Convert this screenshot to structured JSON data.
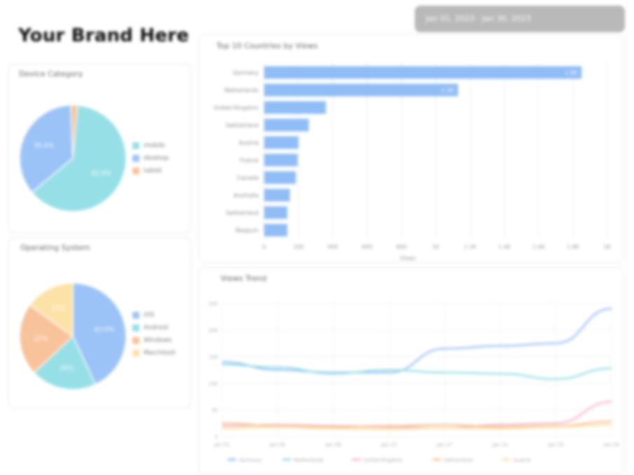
{
  "brand": {
    "title": "Your Brand Here"
  },
  "date_range": {
    "label": "Jan 01, 2023 - Jan 30, 2023"
  },
  "colors": {
    "blue": "#9cc3f7",
    "teal": "#97dfe6",
    "orange": "#f8c39b",
    "yellow": "#fde2a7",
    "pink": "#f6b9c9",
    "bar": "#90bdf5"
  },
  "device_category": {
    "title": "Device Category",
    "legend": [
      "mobile",
      "desktop",
      "tablet"
    ],
    "chart_data": {
      "type": "pie",
      "labels": [
        "mobile",
        "desktop",
        "tablet"
      ],
      "values": [
        62.6,
        35.4,
        2.0
      ],
      "value_labels": [
        "62.6%",
        "35.4%",
        ""
      ]
    }
  },
  "operating_system": {
    "title": "Operating System",
    "legend": [
      "iOS",
      "Android",
      "Windows",
      "Macintosh"
    ],
    "chart_data": {
      "type": "pie",
      "labels": [
        "iOS",
        "Android",
        "Windows",
        "Macintosh"
      ],
      "values": [
        43.0,
        20.0,
        22.0,
        15.0
      ],
      "value_labels": [
        "43.0%",
        "20%",
        "22%",
        "15%"
      ]
    }
  },
  "top_countries": {
    "title": "Top 10 Countries by Views",
    "chart_data": {
      "type": "bar",
      "categories": [
        "Germany",
        "Netherlands",
        "United Kingdom",
        "Switzerland",
        "Austria",
        "France",
        "Canada",
        "Australia",
        "Switzerland",
        "Belgium"
      ],
      "values": [
        1850,
        1130,
        360,
        260,
        200,
        195,
        185,
        150,
        135,
        135
      ],
      "value_labels": [
        "1.9K",
        "1.1K",
        "",
        "",
        "",
        "",
        "",
        "",
        "",
        ""
      ],
      "xlim": [
        0,
        2000
      ],
      "xticks": [
        "0",
        "200",
        "400",
        "600",
        "800",
        "1K",
        "1.2K",
        "1.4K",
        "1.6K",
        "1.8K",
        "2K"
      ],
      "xlabel": "Views"
    }
  },
  "views_chart": {
    "title": "Views Trend",
    "chart_data": {
      "type": "line",
      "x": [
        "Jan 01",
        "Jan 04",
        "Jan 08",
        "Jan 12",
        "Jan 16",
        "Jan 20",
        "Jan 24",
        "Jan 30"
      ],
      "xticks": [
        "Jan 01",
        "Jan 05",
        "Jan 09",
        "Jan 13",
        "Jan 17",
        "Jan 21",
        "Jan 25",
        "Jan 29"
      ],
      "ylim": [
        0,
        250
      ],
      "yticks": [
        "0",
        "50",
        "100",
        "150",
        "200",
        "250"
      ],
      "series": [
        {
          "name": "Germany",
          "color": "#9cc3f7",
          "values": [
            140,
            125,
            120,
            120,
            165,
            170,
            175,
            240
          ]
        },
        {
          "name": "Netherlands",
          "color": "#97dfe6",
          "values": [
            135,
            130,
            118,
            125,
            120,
            118,
            108,
            128
          ]
        },
        {
          "name": "United Kingdom",
          "color": "#f6b9c9",
          "values": [
            20,
            22,
            20,
            18,
            16,
            22,
            25,
            65
          ]
        },
        {
          "name": "Switzerland",
          "color": "#f8c39b",
          "values": [
            25,
            20,
            18,
            20,
            22,
            18,
            20,
            28
          ]
        },
        {
          "name": "Austria",
          "color": "#fde2a7",
          "values": [
            15,
            18,
            15,
            14,
            16,
            15,
            18,
            22
          ]
        }
      ]
    }
  }
}
